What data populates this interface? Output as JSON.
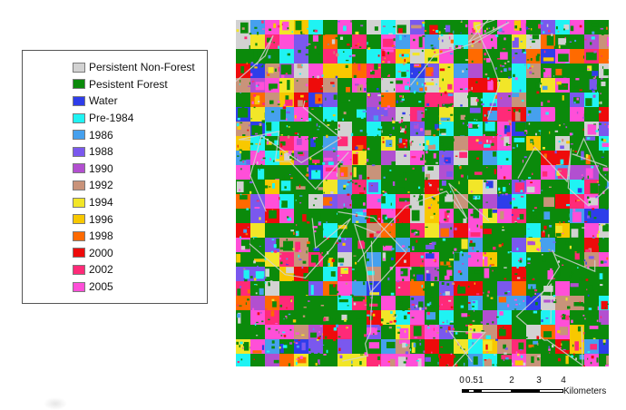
{
  "legend": {
    "items": [
      {
        "label": "Persistent Non-Forest",
        "color": "#d2d2d2"
      },
      {
        "label": "Pesistent Forest",
        "color": "#0b8a0b"
      },
      {
        "label": "Water",
        "color": "#2e3dea"
      },
      {
        "label": "Pre-1984",
        "color": "#1ff3f3"
      },
      {
        "label": "1986",
        "color": "#46a0ee"
      },
      {
        "label": "1988",
        "color": "#7a58ee"
      },
      {
        "label": "1990",
        "color": "#b24fd0"
      },
      {
        "label": "1992",
        "color": "#c9937a"
      },
      {
        "label": "1994",
        "color": "#f2e628"
      },
      {
        "label": "1996",
        "color": "#f8c800"
      },
      {
        "label": "1998",
        "color": "#ff6a00"
      },
      {
        "label": "2000",
        "color": "#ee0b0b"
      },
      {
        "label": "2002",
        "color": "#ff2a78"
      },
      {
        "label": "2005",
        "color": "#ff4fd8"
      }
    ]
  },
  "scalebar": {
    "ticks": [
      "0",
      "0.5",
      "1",
      "2",
      "3",
      "4"
    ],
    "unit": "Kilometers"
  }
}
